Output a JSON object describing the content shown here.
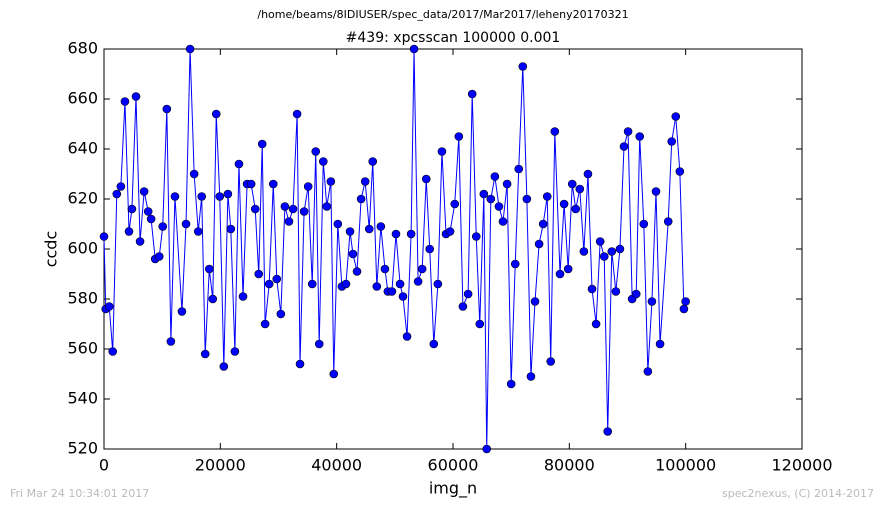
{
  "chart_data": {
    "type": "line",
    "suptitle": "/home/beams/8IDIUSER/spec_data/2017/Mar2017/leheny20170321",
    "title": "#439: xpcsscan 100000 0.001",
    "xlabel": "img_n",
    "ylabel": "ccdc",
    "color": "#0000ff",
    "marker": "circle",
    "x": [
      0,
      300,
      900,
      1500,
      2200,
      2900,
      3600,
      4300,
      4800,
      5500,
      6200,
      6900,
      7600,
      8100,
      8800,
      9500,
      10100,
      10800,
      11500,
      12200,
      13400,
      14100,
      14800,
      15500,
      16200,
      16800,
      17400,
      18100,
      18700,
      19300,
      19900,
      20600,
      21300,
      21800,
      22500,
      23200,
      23900,
      24600,
      25300,
      26000,
      26600,
      27200,
      27700,
      28400,
      29100,
      29700,
      30400,
      31100,
      31800,
      32500,
      33200,
      33700,
      34400,
      35100,
      35800,
      36400,
      37000,
      37700,
      38300,
      39000,
      39500,
      40200,
      40900,
      41600,
      42300,
      42800,
      43500,
      44200,
      44900,
      45600,
      46200,
      46900,
      47600,
      48300,
      48800,
      49500,
      50200,
      50900,
      51400,
      52100,
      52800,
      53300,
      54000,
      54700,
      55400,
      56000,
      56700,
      57400,
      58100,
      58800,
      59500,
      60300,
      61000,
      61700,
      62600,
      63300,
      64000,
      64600,
      65300,
      65800,
      66500,
      67200,
      67900,
      68600,
      69300,
      70000,
      70700,
      71300,
      72000,
      72700,
      73400,
      74100,
      74800,
      75500,
      76200,
      76800,
      77500,
      78400,
      79100,
      79800,
      80500,
      81100,
      81800,
      82500,
      83200,
      83900,
      84600,
      85300,
      86000,
      86600,
      87300,
      88000,
      88700,
      89400,
      90100,
      90800,
      91500,
      92100,
      92800,
      93500,
      94200,
      94900,
      95600,
      97000,
      97600,
      98300,
      99000,
      99700,
      100000
    ],
    "values": [
      605,
      576,
      577,
      559,
      622,
      625,
      659,
      607,
      616,
      661,
      603,
      623,
      615,
      612,
      596,
      597,
      609,
      656,
      563,
      621,
      575,
      610,
      680,
      630,
      607,
      621,
      558,
      592,
      580,
      654,
      621,
      553,
      622,
      608,
      559,
      634,
      581,
      626,
      626,
      616,
      590,
      642,
      570,
      586,
      626,
      588,
      574,
      617,
      611,
      616,
      654,
      554,
      615,
      625,
      586,
      639,
      562,
      635,
      617,
      627,
      550,
      610,
      585,
      586,
      607,
      598,
      591,
      620,
      627,
      608,
      635,
      585,
      609,
      592,
      583,
      583,
      606,
      586,
      581,
      565,
      606,
      680,
      587,
      592,
      628,
      600,
      562,
      586,
      639,
      606,
      607,
      618,
      645,
      577,
      582,
      662,
      605,
      570,
      622,
      520,
      620,
      629,
      617,
      611,
      626,
      546,
      594,
      632,
      673,
      620,
      549,
      579,
      602,
      610,
      621,
      555,
      647,
      590,
      618,
      592,
      626,
      616,
      624,
      599,
      630,
      584,
      570,
      603,
      597,
      527,
      599,
      583,
      600,
      641,
      647,
      580,
      582,
      645,
      610,
      551,
      579,
      623,
      562,
      611,
      643,
      653,
      631,
      576,
      579
    ],
    "xlim": [
      0,
      120000
    ],
    "xticks": [
      0,
      20000,
      40000,
      60000,
      80000,
      100000,
      120000
    ],
    "ylim": [
      520,
      680
    ],
    "yticks": [
      520,
      540,
      560,
      580,
      600,
      620,
      640,
      660,
      680
    ]
  },
  "footer": {
    "timestamp": "Fri Mar 24 10:34:01 2017",
    "credit": "spec2nexus, (C) 2014-2017"
  }
}
